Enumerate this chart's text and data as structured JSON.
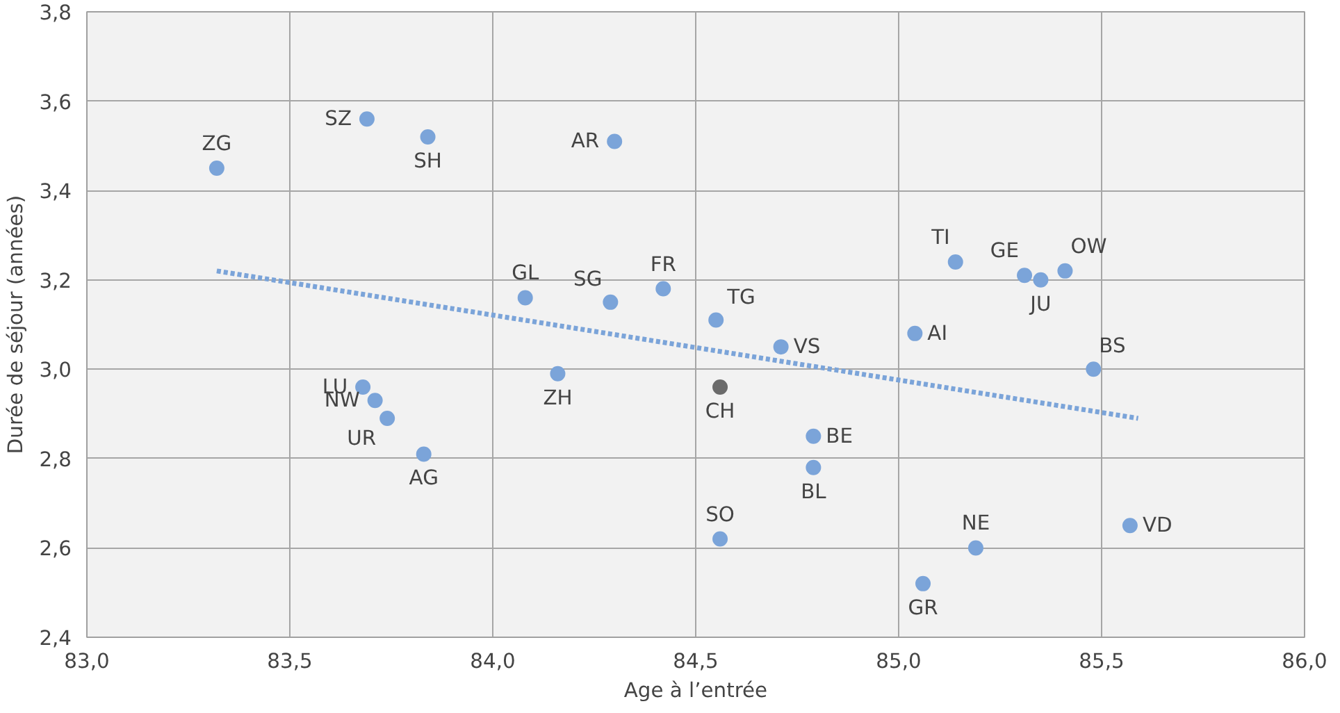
{
  "chart_data": {
    "type": "scatter",
    "xlabel": "Age à l’entrée",
    "ylabel": "Durée de séjour (années)",
    "xlim": [
      83.0,
      86.0
    ],
    "ylim": [
      2.4,
      3.8
    ],
    "xticks": [
      {
        "value": 83.0,
        "label": "83,0"
      },
      {
        "value": 83.5,
        "label": "83,5"
      },
      {
        "value": 84.0,
        "label": "84,0"
      },
      {
        "value": 84.5,
        "label": "84,5"
      },
      {
        "value": 85.0,
        "label": "85,0"
      },
      {
        "value": 85.5,
        "label": "85,5"
      },
      {
        "value": 86.0,
        "label": "86,0"
      }
    ],
    "yticks": [
      {
        "value": 2.4,
        "label": "2,4"
      },
      {
        "value": 2.6,
        "label": "2,6"
      },
      {
        "value": 2.8,
        "label": "2,8"
      },
      {
        "value": 3.0,
        "label": "3,0"
      },
      {
        "value": 3.2,
        "label": "3,2"
      },
      {
        "value": 3.4,
        "label": "3,4"
      },
      {
        "value": 3.6,
        "label": "3,6"
      },
      {
        "value": 3.8,
        "label": "3,8"
      }
    ],
    "grid": true,
    "marker": "circle",
    "series": [
      {
        "x": [
          83.32,
          83.69,
          83.84,
          84.3,
          84.08,
          84.29,
          84.42,
          84.55,
          84.71,
          84.16,
          84.56,
          83.68,
          83.71,
          83.74,
          83.83,
          84.56,
          84.79,
          84.79,
          85.14,
          85.31,
          85.35,
          85.41,
          85.04,
          85.48,
          85.19,
          85.06,
          85.57
        ],
        "values": [
          3.45,
          3.56,
          3.52,
          3.51,
          3.16,
          3.15,
          3.18,
          3.11,
          3.05,
          2.99,
          2.96,
          2.96,
          2.93,
          2.89,
          2.81,
          2.62,
          2.85,
          2.78,
          3.24,
          3.21,
          3.2,
          3.22,
          3.08,
          3.0,
          2.6,
          2.52,
          2.65
        ],
        "colors": [
          "#7ba4d9",
          "#7ba4d9",
          "#7ba4d9",
          "#7ba4d9",
          "#7ba4d9",
          "#7ba4d9",
          "#7ba4d9",
          "#7ba4d9",
          "#7ba4d9",
          "#7ba4d9",
          "#6b6b6b",
          "#7ba4d9",
          "#7ba4d9",
          "#7ba4d9",
          "#7ba4d9",
          "#7ba4d9",
          "#7ba4d9",
          "#7ba4d9",
          "#7ba4d9",
          "#7ba4d9",
          "#7ba4d9",
          "#7ba4d9",
          "#7ba4d9",
          "#7ba4d9",
          "#7ba4d9",
          "#7ba4d9",
          "#7ba4d9"
        ]
      },
      {
        "type": "line",
        "x": [
          83.32,
          85.59
        ],
        "values": [
          3.22,
          2.89
        ],
        "color": "#7ba4d9",
        "line_style": "dotted",
        "marker": "none"
      }
    ],
    "annotations": [
      {
        "text": "ZG",
        "x": 83.32,
        "y": 3.45
      },
      {
        "text": "SZ",
        "x": 83.69,
        "y": 3.56
      },
      {
        "text": "SH",
        "x": 83.84,
        "y": 3.52
      },
      {
        "text": "AR",
        "x": 84.3,
        "y": 3.51
      },
      {
        "text": "GL",
        "x": 84.08,
        "y": 3.16
      },
      {
        "text": "SG",
        "x": 84.29,
        "y": 3.15
      },
      {
        "text": "FR",
        "x": 84.42,
        "y": 3.18
      },
      {
        "text": "TG",
        "x": 84.55,
        "y": 3.11
      },
      {
        "text": "VS",
        "x": 84.71,
        "y": 3.05
      },
      {
        "text": "ZH",
        "x": 84.16,
        "y": 2.99
      },
      {
        "text": "CH",
        "x": 84.56,
        "y": 2.96
      },
      {
        "text": "LU",
        "x": 83.68,
        "y": 2.96
      },
      {
        "text": "NW",
        "x": 83.71,
        "y": 2.93
      },
      {
        "text": "UR",
        "x": 83.74,
        "y": 2.89
      },
      {
        "text": "AG",
        "x": 83.83,
        "y": 2.81
      },
      {
        "text": "SO",
        "x": 84.56,
        "y": 2.62
      },
      {
        "text": "BE",
        "x": 84.79,
        "y": 2.85
      },
      {
        "text": "BL",
        "x": 84.79,
        "y": 2.78
      },
      {
        "text": "TI",
        "x": 85.14,
        "y": 3.24
      },
      {
        "text": "GE",
        "x": 85.31,
        "y": 3.21
      },
      {
        "text": "JU",
        "x": 85.35,
        "y": 3.2
      },
      {
        "text": "OW",
        "x": 85.41,
        "y": 3.22
      },
      {
        "text": "AI",
        "x": 85.04,
        "y": 3.08
      },
      {
        "text": "BS",
        "x": 85.48,
        "y": 3.0
      },
      {
        "text": "NE",
        "x": 85.19,
        "y": 2.6
      },
      {
        "text": "GR",
        "x": 85.06,
        "y": 2.52
      },
      {
        "text": "VD",
        "x": 85.57,
        "y": 2.65
      }
    ]
  }
}
